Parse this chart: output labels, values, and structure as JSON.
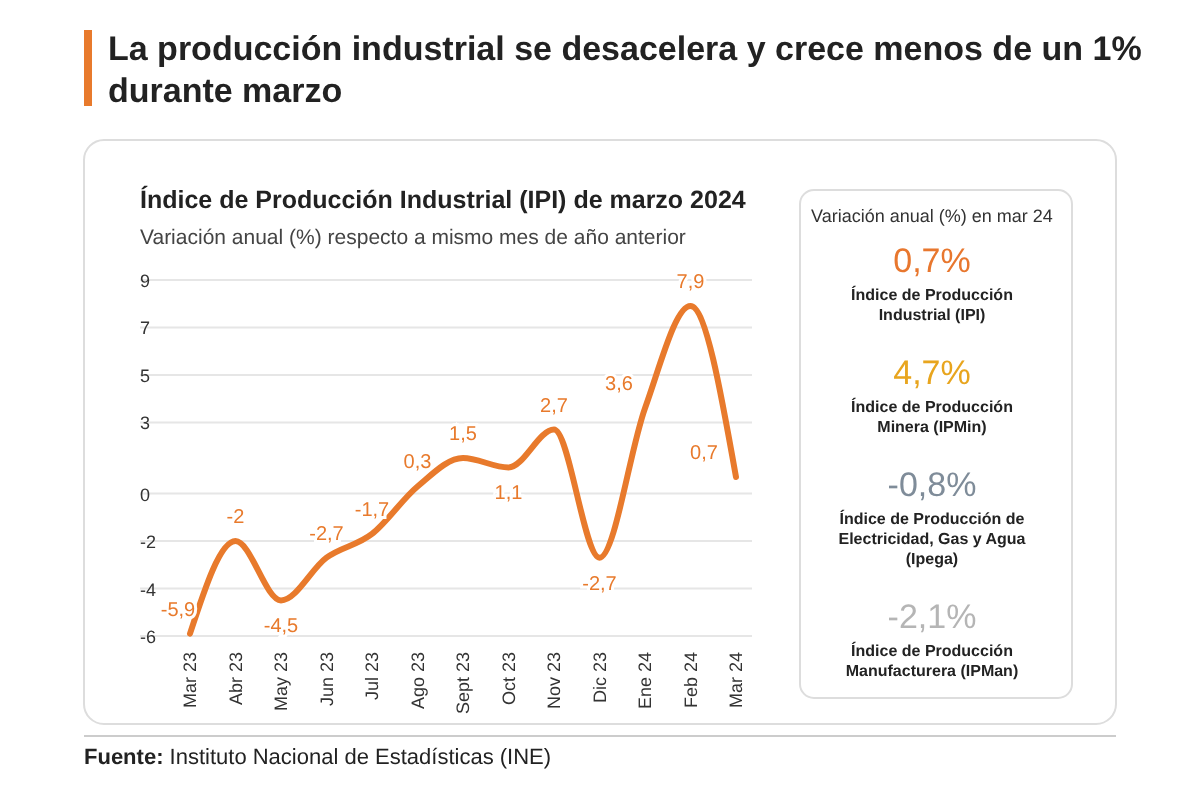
{
  "chart_data": [
    {
      "type": "line",
      "title": "La producción industrial se desacelera y crece menos de un 1% durante marzo",
      "subtitle": "Índice de Producción Industrial (IPI) de marzo 2024",
      "ylabel": "Variación anual (%) respecto a mismo mes de año anterior",
      "categories": [
        "Mar 23",
        "Abr 23",
        "May 23",
        "Jun 23",
        "Jul 23",
        "Ago 23",
        "Sept 23",
        "Oct 23",
        "Nov 23",
        "Dic 23",
        "Ene 24",
        "Feb 24",
        "Mar 24"
      ],
      "values": [
        -5.9,
        -2,
        -4.5,
        -2.7,
        -1.7,
        0.3,
        1.5,
        1.1,
        2.7,
        -2.7,
        3.6,
        7.9,
        0.7
      ],
      "value_labels": [
        "-5,9",
        "-2",
        "-4,5",
        "-2,7",
        "-1,7",
        "0,3",
        "1,5",
        "1,1",
        "2,7",
        "-2,7",
        "3,6",
        "7,9",
        "0,7"
      ],
      "color": "#e87a2c",
      "ylim": [
        -6,
        9
      ],
      "yticks": [
        -6,
        -4,
        -2,
        0,
        3,
        5,
        7,
        9
      ],
      "grid": "y",
      "marker": "none",
      "annotations": [
        "Fuente: Instituto Nacional de Estadísticas (INE)"
      ]
    },
    {
      "type": "other",
      "title": "Variación anual (%) en mar 24",
      "annotations": [
        "0,7%",
        "Índice de Producción Industrial (IPI)",
        "4,7%",
        "Índice de Producción Minera (IPMin)",
        "-0,8%",
        "Índice de Producción de Electricidad, Gas y Agua (Ipega)",
        "-2,1%",
        "Índice de Producción Manufacturera (IPMan)"
      ],
      "colors": [
        "#e8772e",
        "#e8a51e",
        "#7f8c99",
        "#b5b5b5"
      ]
    }
  ]
}
